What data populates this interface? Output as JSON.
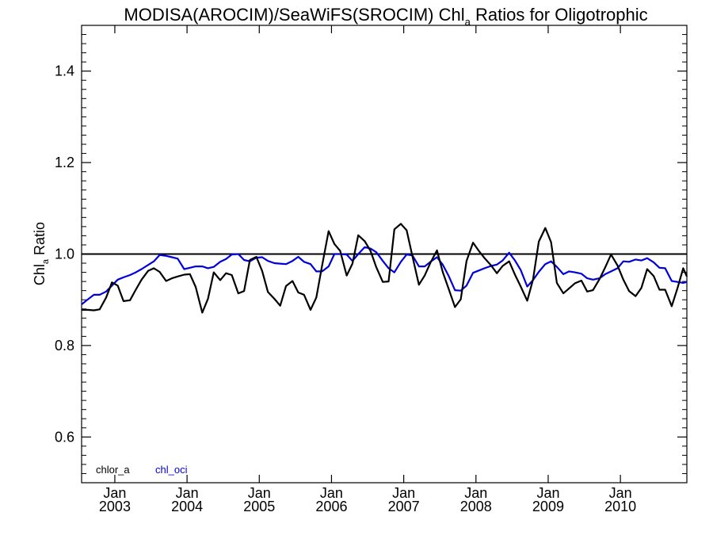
{
  "chart_data": {
    "type": "line",
    "title_main": "MODISA(AROCIM)/SeaWiFS(SROCIM)  Chl",
    "title_sub": "a",
    "title_tail": " Ratios for Oligotrophic",
    "ylabel_main": "Chl",
    "ylabel_sub": "a",
    "ylabel_tail": " Ratio",
    "xlabel": "",
    "ylim": [
      0.5,
      1.5
    ],
    "xlim": [
      2002.54,
      2010.92
    ],
    "yticks": [
      0.6,
      0.8,
      1.0,
      1.2,
      1.4
    ],
    "ytick_labels": [
      "0.6",
      "0.8",
      "1.0",
      "1.2",
      "1.4"
    ],
    "xticks": [
      2003.0,
      2004.0,
      2005.0,
      2006.0,
      2007.0,
      2008.0,
      2009.0,
      2010.0
    ],
    "xtick_labels_top": [
      "Jan",
      "Jan",
      "Jan",
      "Jan",
      "Jan",
      "Jan",
      "Jan",
      "Jan"
    ],
    "xtick_labels_bottom": [
      "2003",
      "2004",
      "2005",
      "2006",
      "2007",
      "2008",
      "2009",
      "2010"
    ],
    "reference_line": 1.0,
    "grid": false,
    "legend_position": "bottom-left",
    "series": [
      {
        "name": "chlor_a",
        "color": "#000000",
        "x": [
          2002.54,
          2002.62,
          2002.71,
          2002.79,
          2002.88,
          2002.96,
          2003.04,
          2003.12,
          2003.21,
          2003.29,
          2003.37,
          2003.46,
          2003.54,
          2003.62,
          2003.71,
          2003.79,
          2003.87,
          2003.96,
          2004.04,
          2004.12,
          2004.21,
          2004.29,
          2004.37,
          2004.46,
          2004.54,
          2004.62,
          2004.71,
          2004.79,
          2004.87,
          2004.96,
          2005.04,
          2005.12,
          2005.21,
          2005.29,
          2005.37,
          2005.46,
          2005.54,
          2005.62,
          2005.71,
          2005.79,
          2005.87,
          2005.96,
          2006.04,
          2006.12,
          2006.21,
          2006.29,
          2006.37,
          2006.46,
          2006.54,
          2006.62,
          2006.71,
          2006.79,
          2006.87,
          2006.96,
          2007.04,
          2007.12,
          2007.21,
          2007.29,
          2007.37,
          2007.46,
          2007.54,
          2007.62,
          2007.71,
          2007.79,
          2007.87,
          2007.96,
          2008.04,
          2008.12,
          2008.21,
          2008.29,
          2008.37,
          2008.46,
          2008.54,
          2008.62,
          2008.71,
          2008.79,
          2008.87,
          2008.96,
          2009.04,
          2009.12,
          2009.21,
          2009.29,
          2009.37,
          2009.46,
          2009.54,
          2009.62,
          2009.71,
          2009.79,
          2009.87,
          2009.96,
          2010.04,
          2010.12,
          2010.21,
          2010.29,
          2010.37,
          2010.46,
          2010.54,
          2010.62,
          2010.71,
          2010.79,
          2010.87,
          2010.92
        ],
        "values": [
          0.878,
          0.878,
          0.877,
          0.879,
          0.905,
          0.938,
          0.931,
          0.897,
          0.899,
          0.922,
          0.944,
          0.963,
          0.969,
          0.961,
          0.941,
          0.947,
          0.951,
          0.955,
          0.956,
          0.928,
          0.872,
          0.902,
          0.96,
          0.943,
          0.958,
          0.954,
          0.914,
          0.919,
          0.987,
          0.994,
          0.963,
          0.917,
          0.902,
          0.887,
          0.93,
          0.941,
          0.916,
          0.911,
          0.878,
          0.905,
          0.975,
          1.05,
          1.022,
          1.007,
          0.953,
          0.979,
          1.041,
          1.028,
          1.007,
          0.971,
          0.939,
          0.94,
          1.054,
          1.066,
          1.052,
          0.995,
          0.933,
          0.953,
          0.981,
          1.008,
          0.961,
          0.925,
          0.884,
          0.901,
          0.985,
          1.025,
          1.007,
          0.991,
          0.975,
          0.958,
          0.974,
          0.984,
          0.955,
          0.929,
          0.898,
          0.944,
          1.027,
          1.057,
          1.026,
          0.937,
          0.914,
          0.925,
          0.936,
          0.942,
          0.918,
          0.921,
          0.945,
          0.971,
          0.999,
          0.975,
          0.944,
          0.919,
          0.908,
          0.926,
          0.967,
          0.952,
          0.922,
          0.922,
          0.886,
          0.925,
          0.969,
          0.951
        ]
      },
      {
        "name": "chl_oci",
        "color": "#0000dd",
        "x": [
          2002.54,
          2002.62,
          2002.71,
          2002.79,
          2002.88,
          2002.96,
          2003.04,
          2003.12,
          2003.21,
          2003.29,
          2003.37,
          2003.46,
          2003.54,
          2003.62,
          2003.71,
          2003.79,
          2003.87,
          2003.96,
          2004.04,
          2004.12,
          2004.21,
          2004.29,
          2004.37,
          2004.46,
          2004.54,
          2004.62,
          2004.71,
          2004.79,
          2004.87,
          2004.96,
          2005.04,
          2005.12,
          2005.21,
          2005.29,
          2005.37,
          2005.46,
          2005.54,
          2005.62,
          2005.71,
          2005.79,
          2005.87,
          2005.96,
          2006.04,
          2006.12,
          2006.21,
          2006.29,
          2006.37,
          2006.46,
          2006.54,
          2006.62,
          2006.71,
          2006.79,
          2006.87,
          2006.96,
          2007.04,
          2007.12,
          2007.21,
          2007.29,
          2007.37,
          2007.46,
          2007.54,
          2007.62,
          2007.71,
          2007.79,
          2007.87,
          2007.96,
          2008.04,
          2008.12,
          2008.21,
          2008.29,
          2008.37,
          2008.46,
          2008.54,
          2008.62,
          2008.71,
          2008.79,
          2008.87,
          2008.96,
          2009.04,
          2009.12,
          2009.21,
          2009.29,
          2009.37,
          2009.46,
          2009.54,
          2009.62,
          2009.71,
          2009.79,
          2009.87,
          2009.96,
          2010.04,
          2010.12,
          2010.21,
          2010.29,
          2010.37,
          2010.46,
          2010.54,
          2010.62,
          2010.71,
          2010.79,
          2010.87,
          2010.92
        ],
        "values": [
          0.89,
          0.9,
          0.911,
          0.911,
          0.918,
          0.931,
          0.944,
          0.949,
          0.954,
          0.96,
          0.967,
          0.976,
          0.984,
          0.998,
          0.996,
          0.993,
          0.99,
          0.967,
          0.97,
          0.973,
          0.973,
          0.969,
          0.972,
          0.983,
          0.989,
          0.999,
          1.0,
          0.987,
          0.984,
          0.992,
          0.993,
          0.985,
          0.98,
          0.979,
          0.978,
          0.985,
          0.994,
          0.983,
          0.978,
          0.962,
          0.962,
          0.973,
          1.0,
          1.0,
          0.999,
          0.985,
          1.0,
          1.015,
          1.012,
          1.004,
          0.985,
          0.969,
          0.96,
          0.983,
          0.999,
          0.997,
          0.973,
          0.973,
          0.983,
          0.993,
          0.977,
          0.953,
          0.921,
          0.92,
          0.931,
          0.959,
          0.964,
          0.969,
          0.974,
          0.977,
          0.986,
          1.003,
          0.986,
          0.965,
          0.929,
          0.943,
          0.961,
          0.978,
          0.984,
          0.972,
          0.956,
          0.962,
          0.96,
          0.957,
          0.947,
          0.944,
          0.947,
          0.956,
          0.962,
          0.969,
          0.984,
          0.983,
          0.988,
          0.986,
          0.991,
          0.982,
          0.97,
          0.969,
          0.941,
          0.939,
          0.937,
          0.939
        ]
      }
    ]
  }
}
